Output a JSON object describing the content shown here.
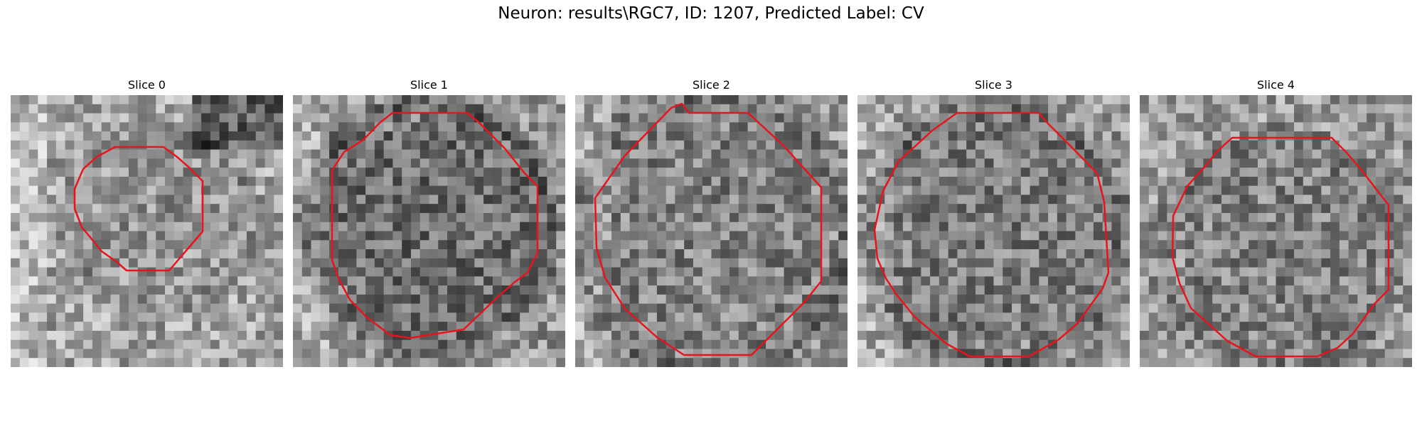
{
  "figure": {
    "title": "Neuron: results\\RGC7, ID: 1207, Predicted Label: CV"
  },
  "panels": [
    {
      "title": "Slice 0"
    },
    {
      "title": "Slice 1"
    },
    {
      "title": "Slice 2"
    },
    {
      "title": "Slice 3"
    },
    {
      "title": "Slice 4"
    }
  ],
  "colors": {
    "contour": "#e8141c"
  }
}
